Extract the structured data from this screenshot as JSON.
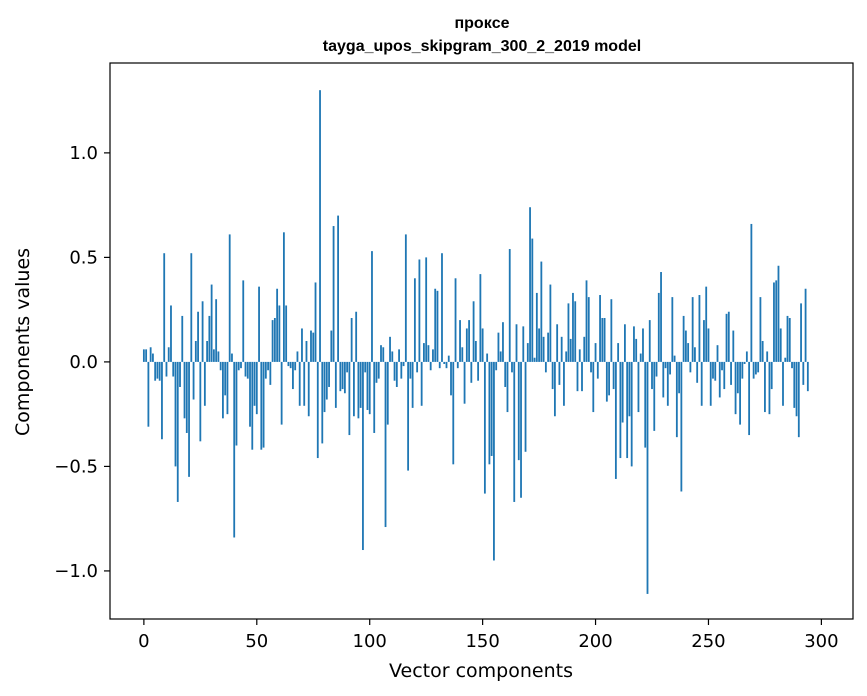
{
  "chart_data": {
    "type": "bar",
    "title": "прокcе",
    "subtitle": "tayga_upos_skipgram_300_2_2019 model",
    "xlabel": "Vector components",
    "ylabel": "Components values",
    "xlim": [
      -15,
      314
    ],
    "ylim": [
      -1.23,
      1.43
    ],
    "x_ticks": [
      0,
      50,
      100,
      150,
      200,
      250,
      300
    ],
    "x_tick_labels": [
      "0",
      "50",
      "100",
      "150",
      "200",
      "250",
      "300"
    ],
    "y_ticks": [
      -1.0,
      -0.5,
      0.0,
      0.5,
      1.0
    ],
    "y_tick_labels": [
      "−1.0",
      "−0.5",
      "0.0",
      "0.5",
      "1.0"
    ],
    "bar_color": "#1f77b4",
    "series": [
      {
        "name": "components",
        "values": [
          0.06,
          0.06,
          -0.31,
          0.07,
          0.04,
          -0.09,
          -0.08,
          -0.09,
          -0.37,
          0.52,
          -0.07,
          0.07,
          0.27,
          -0.07,
          -0.5,
          -0.67,
          -0.12,
          0.22,
          -0.27,
          -0.34,
          -0.55,
          0.52,
          -0.18,
          0.1,
          0.24,
          -0.38,
          0.29,
          -0.21,
          0.1,
          0.22,
          0.37,
          0.06,
          0.3,
          0.05,
          -0.04,
          -0.27,
          -0.16,
          -0.25,
          0.61,
          0.04,
          -0.84,
          -0.4,
          -0.04,
          -0.03,
          0.39,
          -0.07,
          -0.08,
          -0.31,
          -0.42,
          -0.21,
          -0.25,
          0.36,
          -0.42,
          -0.41,
          -0.08,
          -0.04,
          -0.11,
          0.2,
          0.21,
          0.35,
          0.27,
          -0.3,
          0.62,
          0.27,
          -0.02,
          -0.03,
          -0.13,
          -0.04,
          0.05,
          -0.21,
          0.16,
          -0.21,
          0.1,
          -0.26,
          0.15,
          0.14,
          0.38,
          -0.46,
          1.3,
          -0.39,
          -0.24,
          -0.18,
          -0.12,
          0.15,
          0.65,
          -0.22,
          0.7,
          -0.14,
          -0.13,
          -0.15,
          -0.05,
          -0.35,
          0.21,
          -0.26,
          0.24,
          -0.27,
          -0.22,
          -0.9,
          -0.05,
          -0.23,
          -0.25,
          0.53,
          -0.34,
          -0.1,
          -0.08,
          0.08,
          0.07,
          -0.79,
          -0.3,
          0.12,
          0.05,
          -0.09,
          -0.12,
          0.06,
          -0.08,
          -0.02,
          0.61,
          -0.52,
          -0.08,
          -0.22,
          0.4,
          -0.05,
          0.49,
          -0.21,
          0.09,
          0.5,
          0.08,
          -0.04,
          0.06,
          0.35,
          0.34,
          -0.03,
          0.52,
          -0.01,
          -0.03,
          0.03,
          -0.16,
          -0.49,
          0.4,
          -0.03,
          0.2,
          0.07,
          -0.2,
          0.16,
          0.2,
          -0.1,
          0.29,
          0.1,
          -0.09,
          0.42,
          0.16,
          -0.63,
          0.04,
          -0.49,
          -0.45,
          -0.95,
          -0.04,
          0.14,
          0.05,
          0.19,
          -0.12,
          -0.24,
          0.54,
          -0.05,
          -0.67,
          0.18,
          -0.47,
          -0.65,
          0.17,
          -0.43,
          0.09,
          0.74,
          0.59,
          0.02,
          0.33,
          0.16,
          0.48,
          0.12,
          -0.05,
          0.14,
          0.37,
          -0.13,
          -0.26,
          0.18,
          -0.11,
          0.12,
          -0.21,
          0.05,
          0.28,
          0.11,
          0.33,
          0.29,
          -0.14,
          0.06,
          -0.14,
          0.12,
          0.39,
          0.31,
          -0.05,
          -0.24,
          0.09,
          -0.08,
          0.32,
          0.21,
          0.21,
          -0.19,
          -0.16,
          0.3,
          -0.13,
          -0.56,
          0.09,
          -0.46,
          -0.29,
          0.18,
          -0.46,
          -0.26,
          -0.5,
          0.17,
          0.11,
          -0.24,
          0.04,
          0.16,
          -0.41,
          -1.11,
          0.2,
          -0.13,
          -0.33,
          -0.07,
          0.33,
          0.43,
          -0.17,
          -0.03,
          -0.21,
          -0.06,
          0.31,
          0.03,
          -0.36,
          -0.15,
          -0.62,
          0.22,
          0.15,
          0.09,
          -0.05,
          0.31,
          0.07,
          -0.1,
          0.32,
          -0.21,
          0.2,
          0.36,
          0.16,
          -0.21,
          -0.08,
          -0.09,
          0.08,
          -0.17,
          -0.04,
          -0.13,
          0.23,
          0.24,
          -0.11,
          0.15,
          -0.25,
          -0.15,
          -0.3,
          -0.08,
          -0.01,
          0.05,
          -0.35,
          0.66,
          -0.08,
          -0.06,
          -0.05,
          0.31,
          0.1,
          -0.24,
          0.05,
          -0.25,
          -0.13,
          0.38,
          0.39,
          0.46,
          0.16,
          -0.21,
          0.02,
          0.22,
          0.21,
          -0.03,
          -0.22,
          -0.26,
          -0.36,
          0.28,
          -0.11,
          0.35,
          -0.14
        ]
      }
    ],
    "grid": false,
    "legend": "none"
  }
}
